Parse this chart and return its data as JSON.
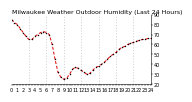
{
  "title": "Milwaukee Weather Outdoor Humidity (Last 24 Hours)",
  "ylim": [
    20,
    90
  ],
  "yticks": [
    20,
    30,
    40,
    50,
    60,
    70,
    80,
    90
  ],
  "xlim": [
    0,
    24
  ],
  "background_color": "#ffffff",
  "line_color": "#dd0000",
  "marker_color": "#000000",
  "grid_color": "#b0b0b0",
  "x": [
    0,
    0.5,
    1,
    1.5,
    2,
    2.5,
    3,
    3.5,
    4,
    4.5,
    5,
    5.5,
    6,
    6.5,
    7,
    7.5,
    8,
    8.5,
    9,
    9.5,
    10,
    10.5,
    11,
    11.5,
    12,
    12.5,
    13,
    13.5,
    14,
    14.5,
    15,
    15.5,
    16,
    16.5,
    17,
    17.5,
    18,
    18.5,
    19,
    19.5,
    20,
    20.5,
    21,
    21.5,
    22,
    22.5,
    23,
    23.5,
    24
  ],
  "y": [
    85,
    82,
    80,
    76,
    72,
    68,
    65,
    65,
    68,
    70,
    72,
    73,
    72,
    70,
    60,
    45,
    32,
    27,
    25,
    26,
    30,
    35,
    37,
    36,
    34,
    32,
    30,
    31,
    34,
    37,
    38,
    40,
    42,
    45,
    48,
    50,
    52,
    55,
    57,
    58,
    60,
    61,
    62,
    63,
    64,
    65,
    65,
    66,
    66
  ],
  "vgrid_positions": [
    3,
    6,
    9,
    12,
    15,
    18,
    21
  ],
  "title_fontsize": 4.5,
  "tick_fontsize": 3.5,
  "label_fontsize": 3.5
}
